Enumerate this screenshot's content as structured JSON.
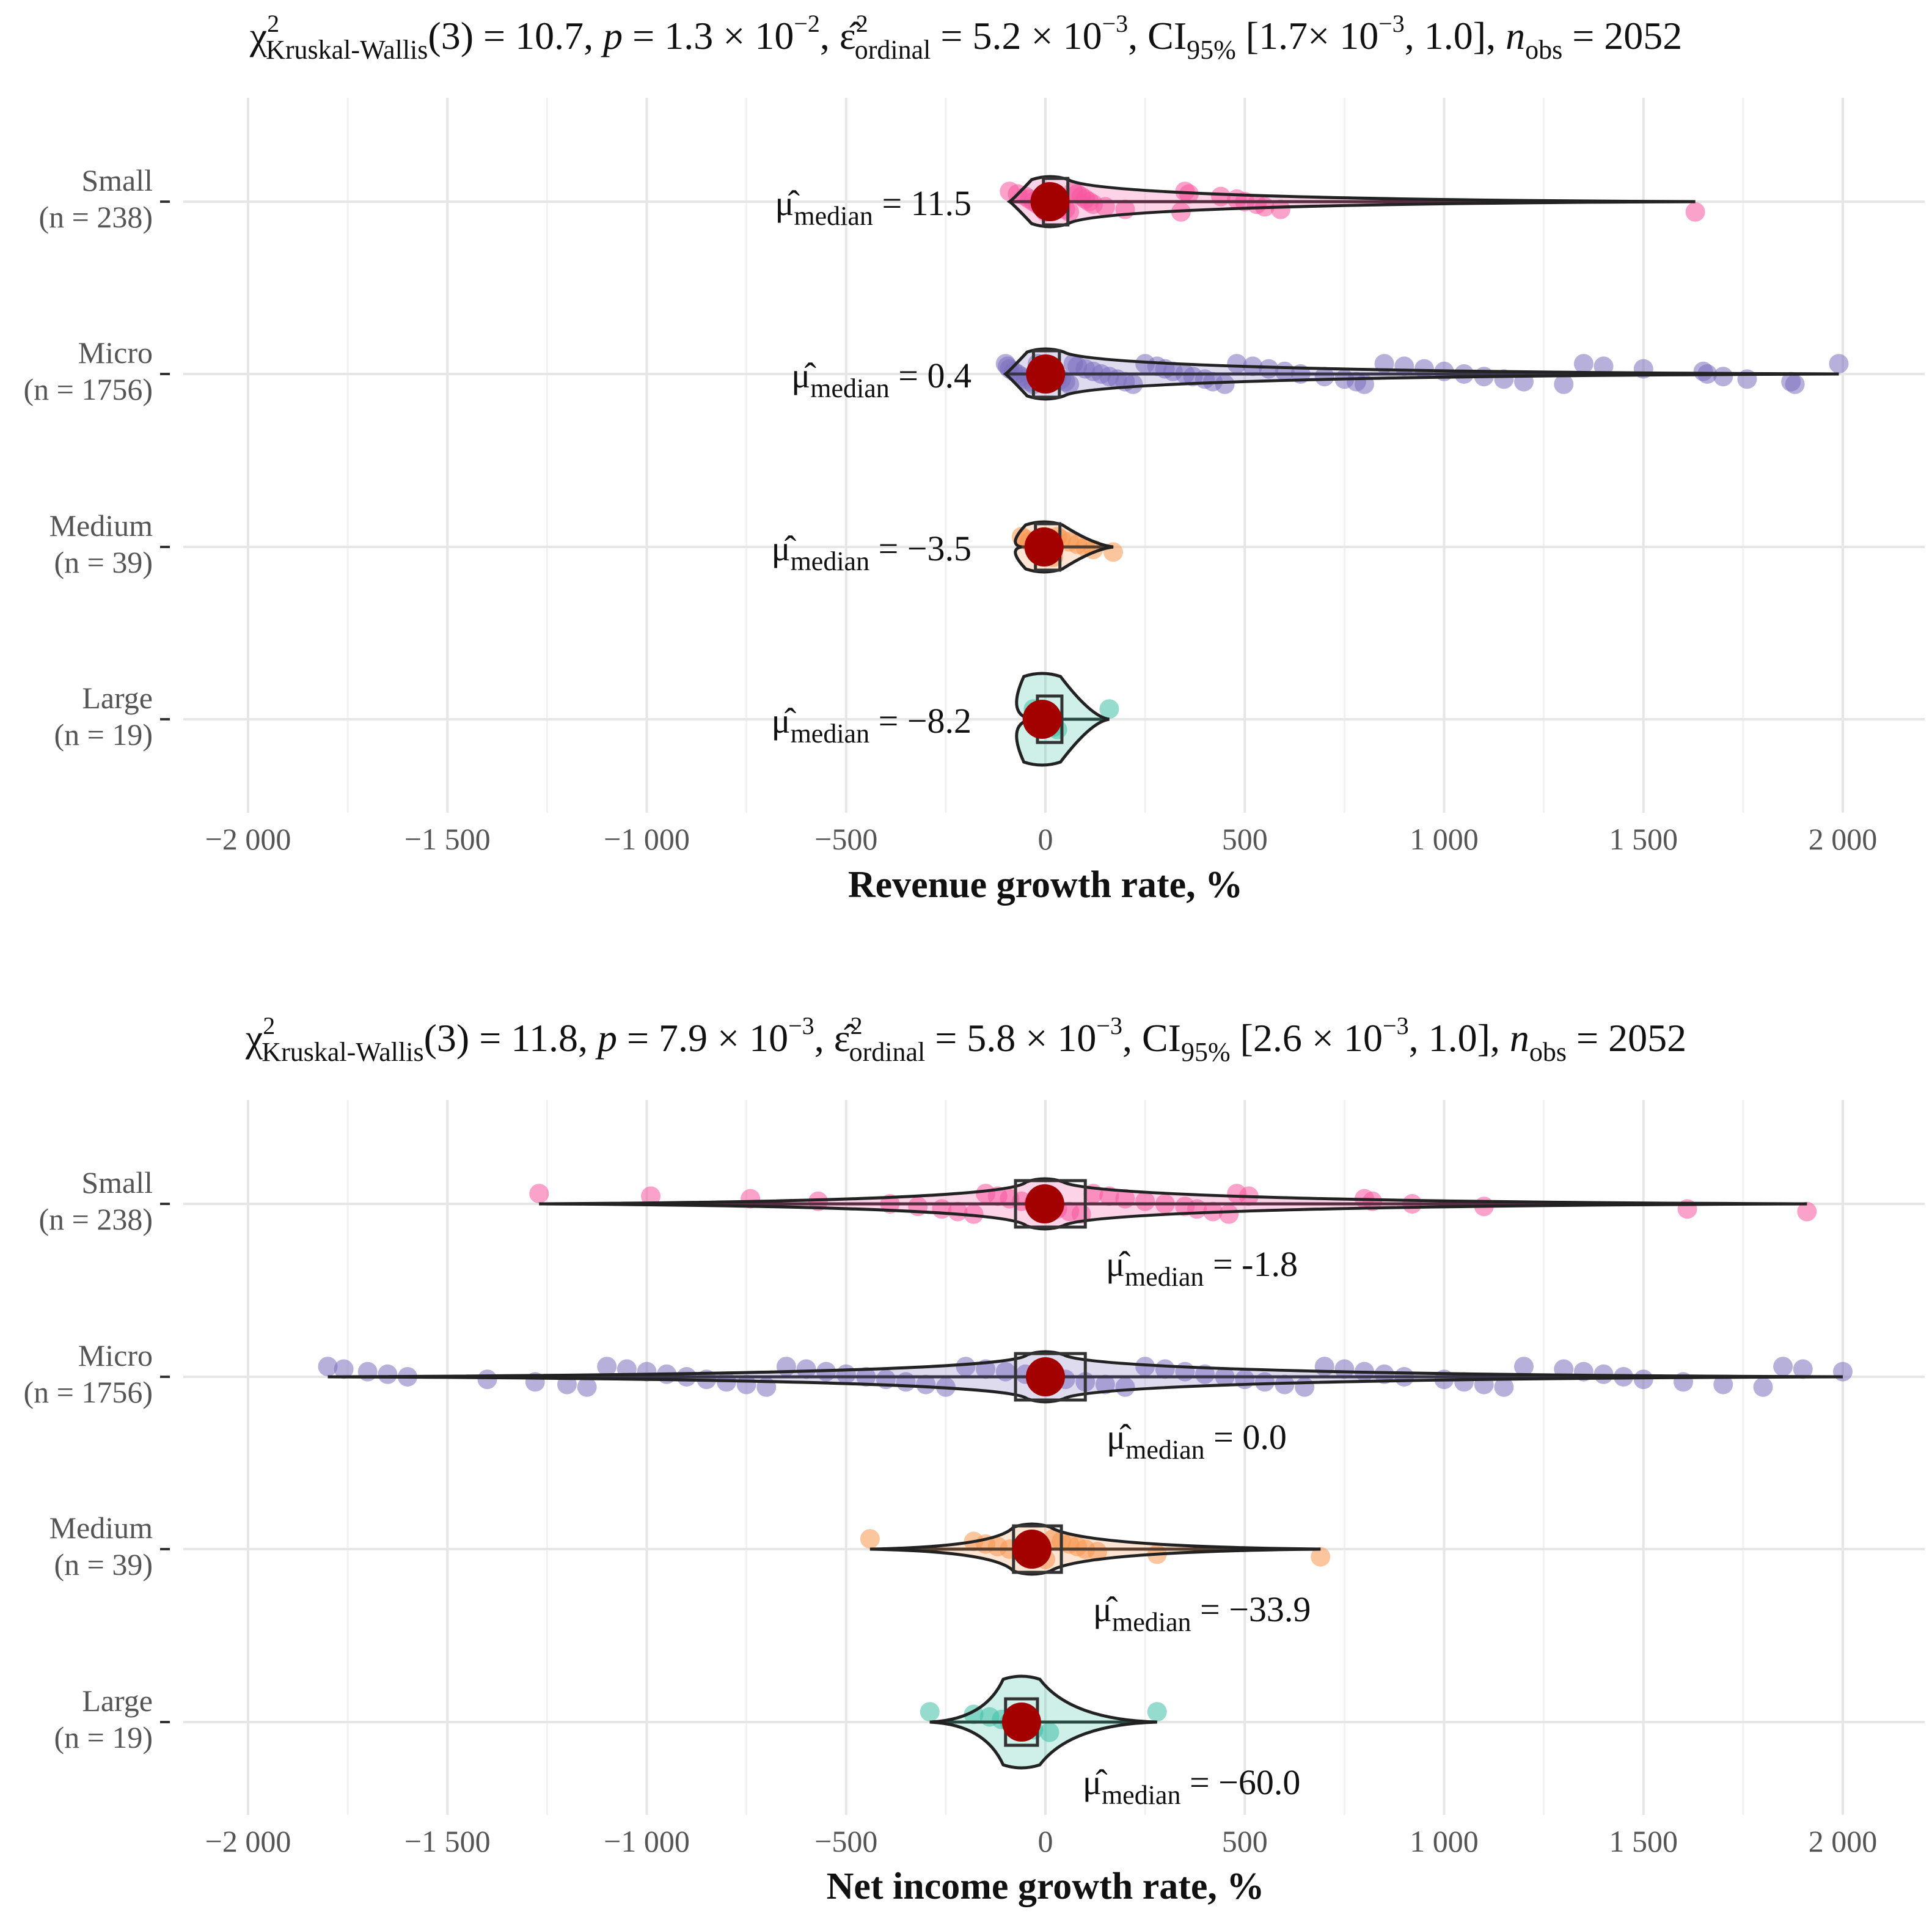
{
  "chart_data": [
    {
      "type": "violin-box-scatter",
      "title": {
        "stat_label": "Kruskal-Wallis",
        "df": "3",
        "stat_value": "10.7",
        "p_value": "1.3 × 10",
        "p_exp": "−2",
        "effsize_label": "ordinal",
        "effsize_value": "5.2 × 10",
        "effsize_exp": "−3",
        "ci_label": "95%",
        "ci_low": "1.7× 10",
        "ci_low_exp": "−3",
        "ci_high": "1.0",
        "n_obs": "2052"
      },
      "xlabel": "Revenue growth rate, %",
      "xlim": [
        -2000,
        2000
      ],
      "xticks": [
        -2000,
        -1500,
        -1000,
        -500,
        0,
        500,
        1000,
        1500,
        2000
      ],
      "xtick_labels": [
        "−2 000",
        "−1 500",
        "−1 000",
        "−500",
        "0",
        "500",
        "1 000",
        "1 500",
        "2 000"
      ],
      "groups": [
        {
          "name": "Small",
          "n_label": "(n = 238)",
          "color": "#f7559f",
          "median_value": 11.5,
          "median_label": "11.5",
          "box": [
            -5,
            11.5,
            40
          ],
          "whisker": [
            -90,
            1630
          ],
          "points": [
            -90,
            -70,
            -50,
            -40,
            -30,
            -20,
            -10,
            -5,
            0,
            5,
            10,
            15,
            20,
            25,
            30,
            40,
            50,
            60,
            70,
            80,
            90,
            100,
            110,
            120,
            150,
            200,
            340,
            350,
            360,
            440,
            480,
            500,
            530,
            550,
            590,
            1630
          ]
        },
        {
          "name": "Micro",
          "n_label": "(n = 1756)",
          "color": "#7b6fbe",
          "median_value": 0.4,
          "median_label": "0.4",
          "box": [
            -30,
            0.4,
            35
          ],
          "whisker": [
            -100,
            1990
          ],
          "points": [
            -100,
            -95,
            -90,
            -80,
            -70,
            -60,
            -50,
            -40,
            -30,
            -20,
            -10,
            0,
            10,
            20,
            30,
            40,
            50,
            60,
            70,
            80,
            100,
            120,
            140,
            160,
            180,
            200,
            220,
            250,
            280,
            300,
            320,
            350,
            370,
            400,
            420,
            450,
            480,
            520,
            560,
            600,
            640,
            700,
            750,
            780,
            800,
            850,
            900,
            950,
            1000,
            1050,
            1100,
            1150,
            1200,
            1300,
            1350,
            1400,
            1500,
            1650,
            1660,
            1700,
            1760,
            1870,
            1880,
            1990
          ]
        },
        {
          "name": "Medium",
          "n_label": "(n = 39)",
          "color": "#f8954e",
          "median_value": -3.5,
          "median_label": "−3.5",
          "box": [
            -25,
            -3.5,
            20
          ],
          "whisker": [
            -60,
            170
          ],
          "points": [
            -60,
            -50,
            -40,
            -30,
            -20,
            -10,
            0,
            10,
            20,
            30,
            40,
            60,
            80,
            100,
            120,
            170
          ]
        },
        {
          "name": "Large",
          "n_label": "(n = 19)",
          "color": "#3fbfa6",
          "median_value": -8.2,
          "median_label": "−8.2",
          "box": [
            -20,
            -8.2,
            15
          ],
          "whisker": [
            -30,
            160
          ],
          "points": [
            -30,
            -20,
            -10,
            -5,
            0,
            5,
            10,
            20,
            30,
            160
          ]
        }
      ]
    },
    {
      "type": "violin-box-scatter",
      "title": {
        "stat_label": "Kruskal-Wallis",
        "df": "3",
        "stat_value": "11.8",
        "p_value": "7.9 × 10",
        "p_exp": "−3",
        "effsize_label": "ordinal",
        "effsize_value": "5.8 × 10",
        "effsize_exp": "−3",
        "ci_label": "95%",
        "ci_low": "2.6 × 10",
        "ci_low_exp": "−3",
        "ci_high": "1.0",
        "n_obs": "2052"
      },
      "xlabel": "Net income growth rate, %",
      "xlim": [
        -2000,
        2000
      ],
      "xticks": [
        -2000,
        -1500,
        -1000,
        -500,
        0,
        500,
        1000,
        1500,
        2000
      ],
      "xtick_labels": [
        "−2 000",
        "−1 500",
        "−1 000",
        "−500",
        "0",
        "500",
        "1 000",
        "1 500",
        "2 000"
      ],
      "groups": [
        {
          "name": "Small",
          "n_label": "(n = 238)",
          "color": "#f7559f",
          "median_value": -1.8,
          "median_label": "-1.8",
          "box": [
            -75,
            -1.8,
            100
          ],
          "whisker": [
            -1270,
            1910
          ],
          "points": [
            -1270,
            -990,
            -740,
            -570,
            -390,
            -320,
            -260,
            -220,
            -180,
            -150,
            -120,
            -90,
            -60,
            -30,
            0,
            30,
            60,
            90,
            120,
            160,
            200,
            250,
            300,
            350,
            380,
            420,
            460,
            480,
            510,
            800,
            820,
            920,
            1100,
            1610,
            1910
          ]
        },
        {
          "name": "Micro",
          "n_label": "(n = 1756)",
          "color": "#7b6fbe",
          "median_value": 0.0,
          "median_label": "0.0",
          "box": [
            -75,
            0.0,
            100
          ],
          "whisker": [
            -1800,
            2000
          ],
          "points": [
            -1800,
            -1760,
            -1700,
            -1650,
            -1600,
            -1400,
            -1280,
            -1200,
            -1150,
            -1100,
            -1050,
            -1000,
            -950,
            -900,
            -850,
            -800,
            -750,
            -700,
            -650,
            -600,
            -550,
            -500,
            -450,
            -400,
            -350,
            -300,
            -250,
            -200,
            -150,
            -100,
            -50,
            0,
            50,
            100,
            150,
            200,
            250,
            300,
            350,
            400,
            450,
            500,
            550,
            600,
            650,
            700,
            750,
            800,
            850,
            900,
            1000,
            1050,
            1100,
            1150,
            1200,
            1300,
            1350,
            1400,
            1450,
            1500,
            1600,
            1700,
            1800,
            1850,
            1900,
            2000
          ]
        },
        {
          "name": "Medium",
          "n_label": "(n = 39)",
          "color": "#f8954e",
          "median_value": -33.9,
          "median_label": "−33.9",
          "box": [
            -80,
            -33.9,
            40
          ],
          "whisker": [
            -440,
            690
          ],
          "points": [
            -440,
            -180,
            -150,
            -120,
            -90,
            -60,
            -40,
            -20,
            0,
            20,
            40,
            60,
            80,
            100,
            130,
            280,
            690
          ]
        },
        {
          "name": "Large",
          "n_label": "(n = 19)",
          "color": "#3fbfa6",
          "median_value": -60.0,
          "median_label": "−60.0",
          "box": [
            -100,
            -60.0,
            -20
          ],
          "whisker": [
            -290,
            280
          ],
          "points": [
            -290,
            -180,
            -140,
            -110,
            -90,
            -70,
            -50,
            -30,
            10,
            280
          ]
        }
      ]
    }
  ],
  "labels": {
    "mu_symbol": "μ̂",
    "median_sub": "median",
    "chi_symbol": "χ",
    "sq": "2",
    "p_symbol": "p",
    "eps_symbol": "ε̂",
    "ci_symbol": "CI",
    "n_symbol": "n",
    "obs_sub": "obs"
  }
}
